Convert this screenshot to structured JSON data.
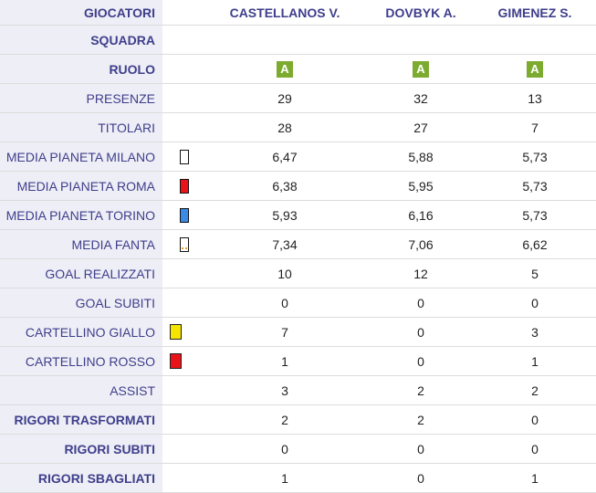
{
  "header": {
    "label": "GIOCATORI",
    "players": [
      "CASTELLANOS V.",
      "DOVBYK A.",
      "GIMENEZ S."
    ]
  },
  "squadra": {
    "label": "SQUADRA"
  },
  "ruolo": {
    "label": "RUOLO",
    "values": [
      "A",
      "A",
      "A"
    ],
    "badge_color": "#7dab2f"
  },
  "rows": [
    {
      "label": "PRESENZE",
      "values": [
        "29",
        "32",
        "13"
      ]
    },
    {
      "label": "TITOLARI",
      "values": [
        "28",
        "27",
        "7"
      ]
    },
    {
      "label": "MEDIA PIANETA MILANO",
      "values": [
        "6,47",
        "5,88",
        "5,73"
      ],
      "icon": "white-chip-icon",
      "icon_color": "#ffffff"
    },
    {
      "label": "MEDIA PIANETA ROMA",
      "values": [
        "6,38",
        "5,95",
        "5,73"
      ],
      "icon": "red-chip-icon",
      "icon_color": "#e8141a"
    },
    {
      "label": "MEDIA PIANETA TORINO",
      "values": [
        "5,93",
        "6,16",
        "5,73"
      ],
      "icon": "blue-chip-icon",
      "icon_color": "#3a8ae6"
    },
    {
      "label": "MEDIA FANTA",
      "values": [
        "7,34",
        "7,06",
        "6,62"
      ],
      "icon": "fanta-chip-icon",
      "icon_color": "#ffffff"
    },
    {
      "label": "GOAL REALIZZATI",
      "values": [
        "10",
        "12",
        "5"
      ]
    },
    {
      "label": "GOAL SUBITI",
      "values": [
        "0",
        "0",
        "0"
      ]
    },
    {
      "label": "CARTELLINO GIALLO",
      "values": [
        "7",
        "0",
        "3"
      ],
      "icon": "yellow-card-icon",
      "icon_color": "#f5e600"
    },
    {
      "label": "CARTELLINO ROSSO",
      "values": [
        "1",
        "0",
        "1"
      ],
      "icon": "red-card-icon",
      "icon_color": "#e8141a"
    },
    {
      "label": "ASSIST",
      "values": [
        "3",
        "2",
        "2"
      ]
    },
    {
      "label": "RIGORI TRASFORMATI",
      "values": [
        "2",
        "2",
        "0"
      ],
      "bold": true
    },
    {
      "label": "RIGORI SUBITI",
      "values": [
        "0",
        "0",
        "0"
      ],
      "bold": true
    },
    {
      "label": "RIGORI SBAGLIATI",
      "values": [
        "1",
        "0",
        "1"
      ],
      "bold": true
    }
  ]
}
